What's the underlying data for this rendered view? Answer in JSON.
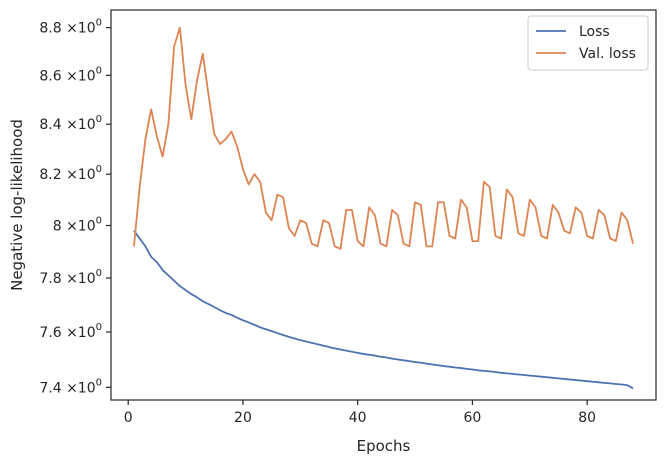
{
  "chart_data": {
    "type": "line",
    "xlabel": "Epochs",
    "ylabel": "Negative log-likelihood",
    "xlim": [
      -3,
      92
    ],
    "ylim": [
      7.355,
      8.875
    ],
    "x_ticks": [
      {
        "value": 0,
        "label": "0"
      },
      {
        "value": 20,
        "label": "20"
      },
      {
        "value": 40,
        "label": "40"
      },
      {
        "value": 60,
        "label": "60"
      },
      {
        "value": 80,
        "label": "80"
      }
    ],
    "y_ticks": [
      {
        "value": 7.4,
        "base": "7.4",
        "sup": "0"
      },
      {
        "value": 7.6,
        "base": "7.6",
        "sup": "0"
      },
      {
        "value": 7.8,
        "base": "7.8",
        "sup": "0"
      },
      {
        "value": 8.0,
        "base": "8",
        "sup": "0"
      },
      {
        "value": 8.2,
        "base": "8.2",
        "sup": "0"
      },
      {
        "value": 8.4,
        "base": "8.4",
        "sup": "0"
      },
      {
        "value": 8.6,
        "base": "8.6",
        "sup": "0"
      },
      {
        "value": 8.8,
        "base": "8.8",
        "sup": "0"
      }
    ],
    "y_scale": "log",
    "times_sign": "×10",
    "grid": false,
    "legend_position": "top-right",
    "x": [
      1,
      2,
      3,
      4,
      5,
      6,
      7,
      8,
      9,
      10,
      11,
      12,
      13,
      14,
      15,
      16,
      17,
      18,
      19,
      20,
      21,
      22,
      23,
      24,
      25,
      26,
      27,
      28,
      29,
      30,
      31,
      32,
      33,
      34,
      35,
      36,
      37,
      38,
      39,
      40,
      41,
      42,
      43,
      44,
      45,
      46,
      47,
      48,
      49,
      50,
      51,
      52,
      53,
      54,
      55,
      56,
      57,
      58,
      59,
      60,
      61,
      62,
      63,
      64,
      65,
      66,
      67,
      68,
      69,
      70,
      71,
      72,
      73,
      74,
      75,
      76,
      77,
      78,
      79,
      80,
      81,
      82,
      83,
      84,
      85,
      86,
      87,
      88
    ],
    "series": [
      {
        "name": "Loss",
        "color": "#4c72b0",
        "values": [
          7.98,
          7.95,
          7.92,
          7.88,
          7.86,
          7.83,
          7.81,
          7.79,
          7.77,
          7.755,
          7.74,
          7.728,
          7.713,
          7.703,
          7.692,
          7.68,
          7.67,
          7.663,
          7.652,
          7.643,
          7.635,
          7.626,
          7.617,
          7.61,
          7.603,
          7.596,
          7.589,
          7.582,
          7.576,
          7.57,
          7.565,
          7.56,
          7.555,
          7.55,
          7.545,
          7.54,
          7.536,
          7.532,
          7.528,
          7.524,
          7.52,
          7.517,
          7.514,
          7.51,
          7.507,
          7.503,
          7.5,
          7.497,
          7.494,
          7.491,
          7.488,
          7.485,
          7.482,
          7.479,
          7.476,
          7.474,
          7.471,
          7.469,
          7.466,
          7.464,
          7.461,
          7.459,
          7.457,
          7.455,
          7.452,
          7.45,
          7.448,
          7.446,
          7.444,
          7.442,
          7.44,
          7.438,
          7.436,
          7.434,
          7.432,
          7.43,
          7.428,
          7.426,
          7.424,
          7.422,
          7.42,
          7.418,
          7.416,
          7.414,
          7.412,
          7.41,
          7.408,
          7.396
        ]
      },
      {
        "name": "Val. loss",
        "color": "#dd8452",
        "values": [
          7.92,
          8.15,
          8.34,
          8.46,
          8.35,
          8.27,
          8.4,
          8.72,
          8.8,
          8.56,
          8.42,
          8.58,
          8.69,
          8.52,
          8.36,
          8.32,
          8.34,
          8.37,
          8.31,
          8.22,
          8.16,
          8.2,
          8.17,
          8.05,
          8.02,
          8.12,
          8.11,
          7.99,
          7.96,
          8.02,
          8.01,
          7.93,
          7.92,
          8.02,
          8.01,
          7.92,
          7.91,
          8.06,
          8.06,
          7.94,
          7.92,
          8.07,
          8.04,
          7.93,
          7.92,
          8.06,
          8.04,
          7.93,
          7.92,
          8.09,
          8.08,
          7.92,
          7.92,
          8.09,
          8.09,
          7.96,
          7.95,
          8.1,
          8.07,
          7.94,
          7.94,
          8.17,
          8.15,
          7.96,
          7.95,
          8.14,
          8.11,
          7.97,
          7.96,
          8.1,
          8.07,
          7.96,
          7.95,
          8.08,
          8.05,
          7.98,
          7.97,
          8.07,
          8.05,
          7.96,
          7.95,
          8.06,
          8.04,
          7.95,
          7.94,
          8.05,
          8.02,
          7.93
        ]
      }
    ]
  }
}
